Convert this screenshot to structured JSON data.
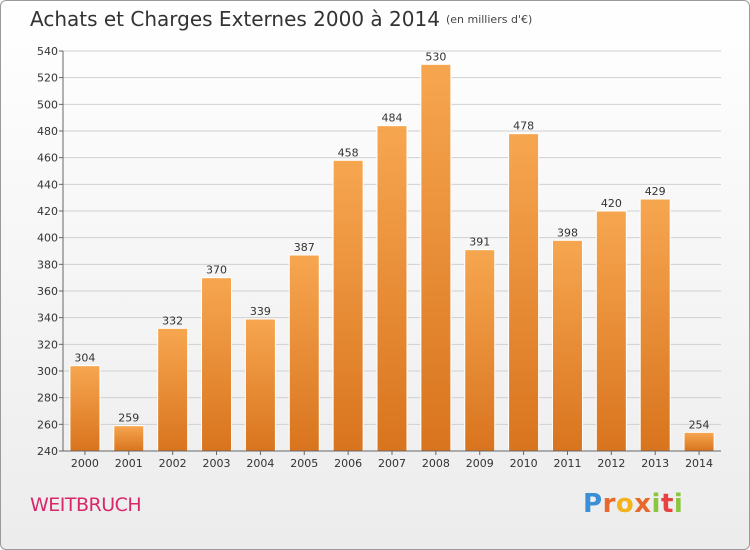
{
  "header": {
    "title": "Achats et Charges Externes 2000 à 2014",
    "subtitle": "(en milliers d'€)"
  },
  "footer": {
    "commune": "WEITBRUCH",
    "logo_text": "Proxiti"
  },
  "colors": {
    "bar_light": "#f7a650",
    "bar_dark": "#d9741e",
    "grid": "#d0d0d0",
    "axis_text": "#333333",
    "commune_text": "#d9276b"
  },
  "chart_data": {
    "type": "bar",
    "title": "Achats et Charges Externes 2000 à 2014",
    "subtitle": "(en milliers d'€)",
    "xlabel": "",
    "ylabel": "",
    "categories": [
      "2000",
      "2001",
      "2002",
      "2003",
      "2004",
      "2005",
      "2006",
      "2007",
      "2008",
      "2009",
      "2010",
      "2011",
      "2012",
      "2013",
      "2014"
    ],
    "values": [
      304,
      259,
      332,
      370,
      339,
      387,
      458,
      484,
      530,
      391,
      478,
      398,
      420,
      429,
      254
    ],
    "ylim": [
      240,
      540
    ],
    "yticks": [
      240,
      260,
      280,
      300,
      320,
      340,
      360,
      380,
      400,
      420,
      440,
      460,
      480,
      500,
      520,
      540
    ],
    "grid": true,
    "data_labels": true
  }
}
